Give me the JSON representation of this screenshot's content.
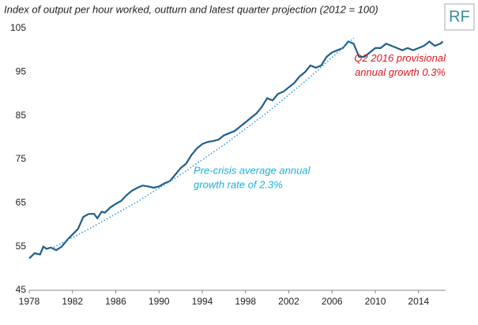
{
  "chart_data": {
    "type": "line",
    "title": "Index of output per hour worked, outturn and latest quarter projection (2012 = 100)",
    "logo": "RF",
    "xlim": [
      1978,
      2016.5
    ],
    "xticks": [
      1978,
      1982,
      1986,
      1990,
      1994,
      1998,
      2002,
      2006,
      2010,
      2014
    ],
    "ylim": [
      45,
      105
    ],
    "yticks": [
      45,
      55,
      65,
      75,
      85,
      95,
      105
    ],
    "grid": false,
    "series": [
      {
        "color": "#1f5f8b",
        "style": "solid",
        "x": [
          1978,
          1978.5,
          1979,
          1979.3,
          1979.6,
          1980,
          1980.5,
          1981,
          1981.5,
          1982,
          1982.5,
          1983,
          1983.5,
          1984,
          1984.3,
          1984.7,
          1985,
          1985.5,
          1986,
          1986.5,
          1987,
          1987.5,
          1988,
          1988.5,
          1989,
          1989.5,
          1990,
          1990.5,
          1991,
          1991.5,
          1992,
          1992.5,
          1993,
          1993.5,
          1994,
          1994.5,
          1995,
          1995.5,
          1996,
          1996.5,
          1997,
          1997.5,
          1998,
          1998.5,
          1999,
          1999.5,
          2000,
          2000.5,
          2001,
          2001.5,
          2002,
          2002.5,
          2003,
          2003.5,
          2004,
          2004.5,
          2005,
          2005.5,
          2006,
          2006.5,
          2007,
          2007.5,
          2008,
          2008.5,
          2009,
          2009.5,
          2010,
          2010.5,
          2011,
          2011.5,
          2012,
          2012.5,
          2013,
          2013.5,
          2014,
          2014.5,
          2015,
          2015.5,
          2016,
          2016.25
        ],
        "values": [
          52.3,
          53.5,
          53.2,
          55.0,
          54.5,
          54.8,
          54.2,
          55.0,
          56.5,
          57.8,
          59.0,
          61.8,
          62.5,
          62.5,
          61.5,
          63.0,
          62.8,
          64.0,
          64.8,
          65.5,
          66.8,
          67.8,
          68.5,
          69.0,
          68.8,
          68.5,
          68.8,
          69.5,
          70.0,
          71.5,
          73.0,
          74.0,
          76.0,
          77.5,
          78.5,
          79.0,
          79.2,
          79.5,
          80.5,
          81.0,
          81.5,
          82.5,
          83.5,
          84.5,
          85.5,
          87.0,
          89.0,
          88.5,
          90.0,
          90.5,
          91.5,
          92.5,
          94.0,
          95.0,
          96.5,
          96.0,
          96.5,
          98.5,
          99.5,
          100.0,
          100.5,
          102.0,
          101.5,
          98.5,
          98.5,
          99.5,
          100.5,
          100.5,
          101.5,
          101.0,
          100.5,
          100.0,
          100.5,
          100.0,
          100.5,
          101.0,
          102.0,
          101.0,
          101.5,
          102.0
        ]
      },
      {
        "color": "#3a9ad9",
        "style": "dotted",
        "x": [
          1980,
          1984,
          1988,
          1992,
          1996,
          2000,
          2004,
          2008
        ],
        "values": [
          54.5,
          59.7,
          65.3,
          71.5,
          78.3,
          85.7,
          93.9,
          102.8
        ]
      }
    ],
    "annotations": [
      {
        "lines": [
          "Q2 2016 provisional",
          "annual growth 0.3%"
        ],
        "color": "#e0161d",
        "align": "right",
        "x": 2016.5,
        "y": 98
      },
      {
        "lines": [
          "Pre-crisis average annual",
          "growth rate of 2.3%"
        ],
        "color": "#1ab0d8",
        "align": "left",
        "x": 1993.2,
        "y": 72.3
      }
    ]
  }
}
